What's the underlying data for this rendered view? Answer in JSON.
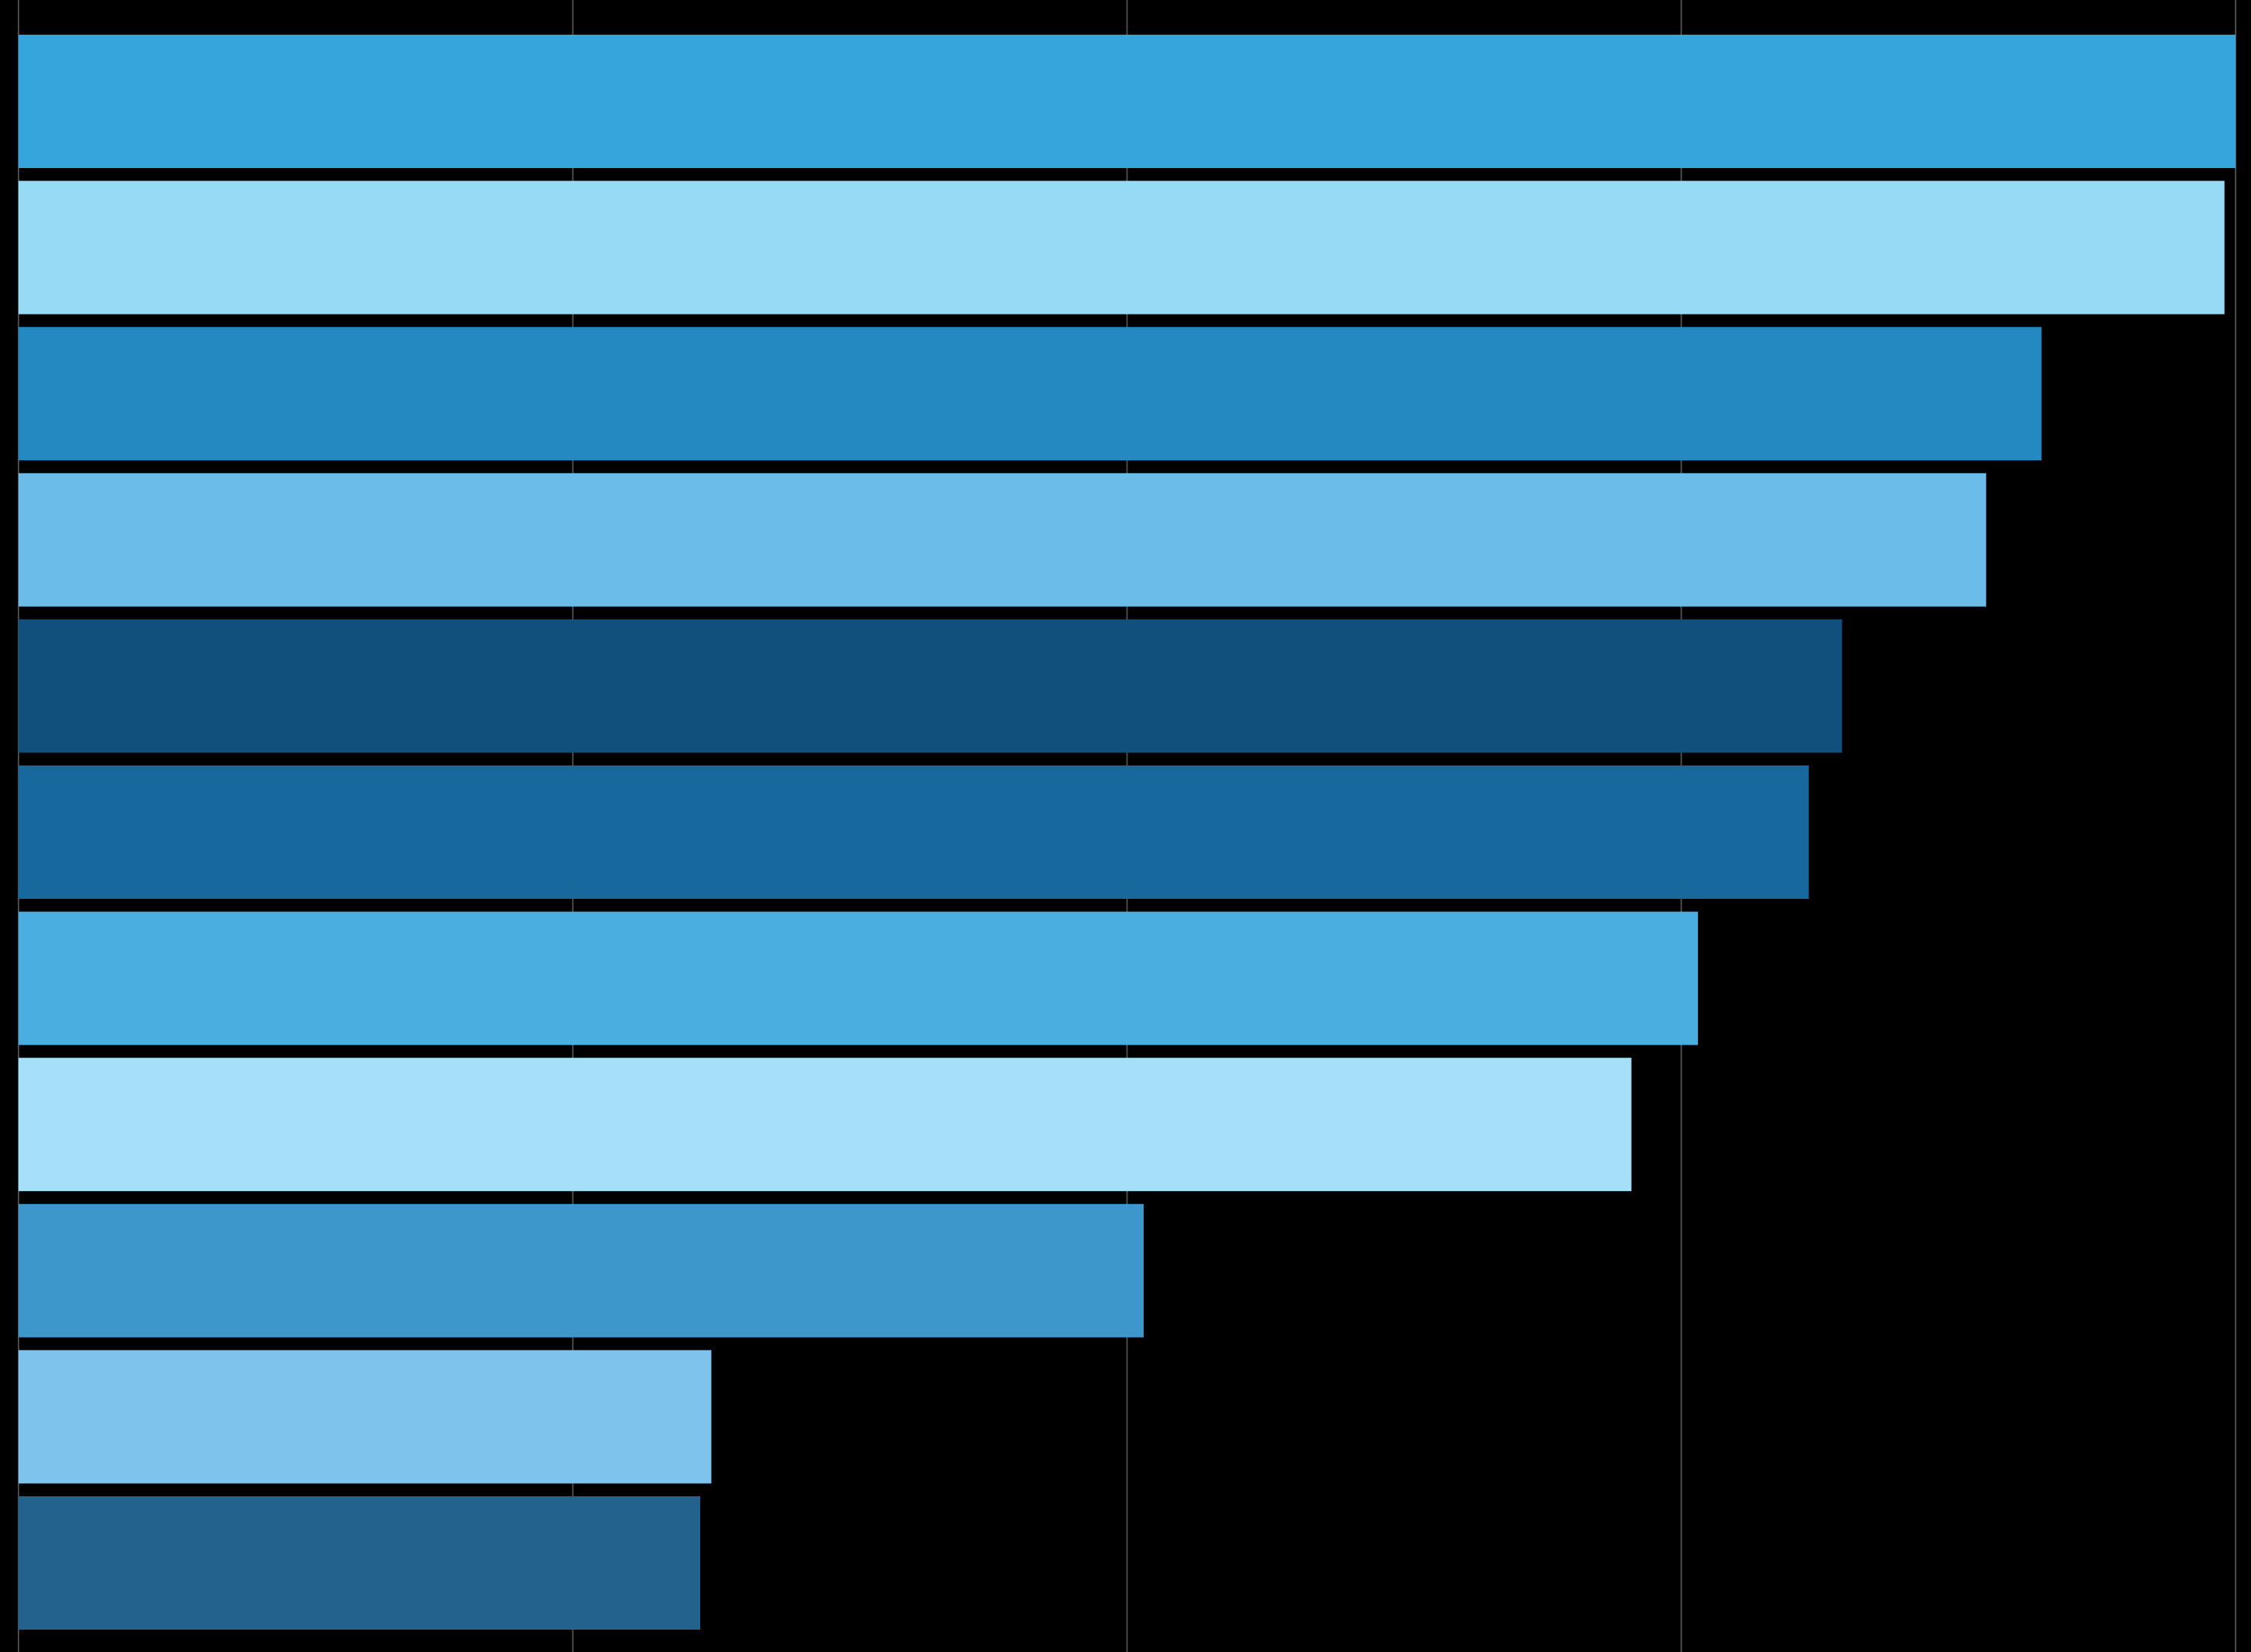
{
  "chart_data": {
    "type": "bar",
    "orientation": "horizontal",
    "values": [
      4.0,
      3.98,
      3.65,
      3.55,
      3.29,
      3.23,
      3.03,
      2.91,
      2.03,
      1.25,
      1.23
    ],
    "colors": [
      "#35a5db",
      "#97daf5",
      "#2389c0",
      "#6bbce9",
      "#11507c",
      "#17689c",
      "#4baee0",
      "#a5dff8",
      "#3d97cb",
      "#7dc3ec",
      "#22628c"
    ],
    "xlim": [
      0,
      4
    ],
    "xticks": [
      0,
      1,
      2,
      3,
      4
    ],
    "grid": true
  }
}
